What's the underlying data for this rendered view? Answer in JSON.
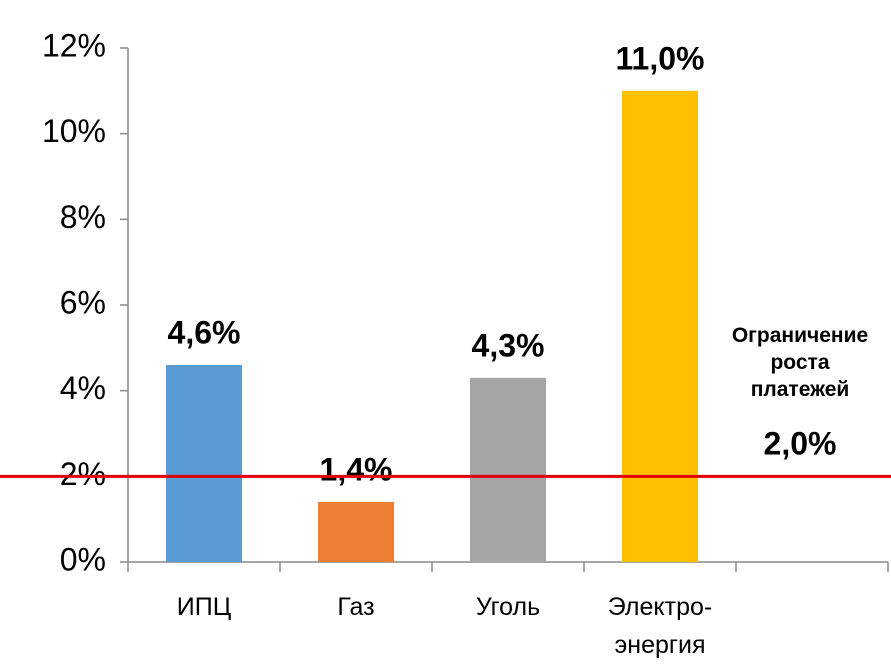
{
  "chart_data": {
    "type": "bar",
    "categories": [
      "ИПЦ",
      "Газ",
      "Уголь",
      "Электро-\nэнергия",
      null
    ],
    "values": [
      4.6,
      1.4,
      4.3,
      11.0,
      null
    ],
    "value_labels": [
      "4,6%",
      "1,4%",
      "4,3%",
      "11,0%",
      null
    ],
    "colors": [
      "#5b9bd5",
      "#ed7d31",
      "#a5a5a5",
      "#ffc000",
      null
    ],
    "ylim": [
      0,
      12
    ],
    "yticks": [
      {
        "value": 0,
        "label": "0%"
      },
      {
        "value": 2,
        "label": "2%"
      },
      {
        "value": 4,
        "label": "4%"
      },
      {
        "value": 6,
        "label": "6%"
      },
      {
        "value": 8,
        "label": "8%"
      },
      {
        "value": 10,
        "label": "10%"
      },
      {
        "value": 12,
        "label": "12%"
      }
    ],
    "grid": false,
    "reference_line": {
      "value": 2,
      "color": "#e00000",
      "label": "Ограничение\nроста\nплатежей",
      "value_label": "2,0%"
    }
  }
}
